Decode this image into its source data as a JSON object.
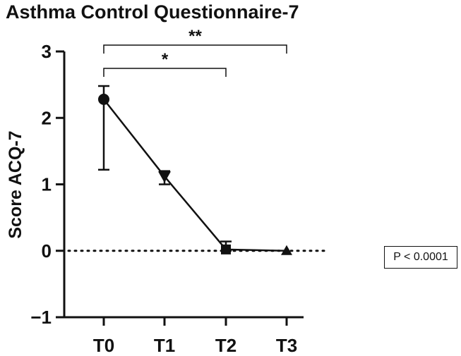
{
  "chart_data": {
    "type": "line",
    "title": "Asthma Control Questionnaire-7",
    "xlabel": "",
    "ylabel": "Score ACQ-7",
    "categories": [
      "T0",
      "T1",
      "T2",
      "T3"
    ],
    "ylim": [
      -1,
      3
    ],
    "yticks": [
      -1,
      0,
      1,
      2,
      3
    ],
    "ytick_labels": [
      "−1",
      "0",
      "1",
      "2",
      "3"
    ],
    "series": [
      {
        "values": [
          2.28,
          1.12,
          0.02,
          0.0
        ],
        "error_upper": [
          2.48,
          1.2,
          0.14,
          0.0
        ],
        "error_lower": [
          1.22,
          1.0,
          0.0,
          0.0
        ],
        "markers": [
          "circle",
          "triangle-down",
          "square",
          "triangle-up"
        ]
      }
    ],
    "reference_line": {
      "y": 0,
      "style": "dotted"
    },
    "significance": [
      {
        "from": "T0",
        "to": "T2",
        "label": "*"
      },
      {
        "from": "T0",
        "to": "T3",
        "label": "**"
      }
    ],
    "annotation": "P < 0.0001",
    "colors": {
      "ink": "#111111",
      "background": "#ffffff"
    }
  }
}
